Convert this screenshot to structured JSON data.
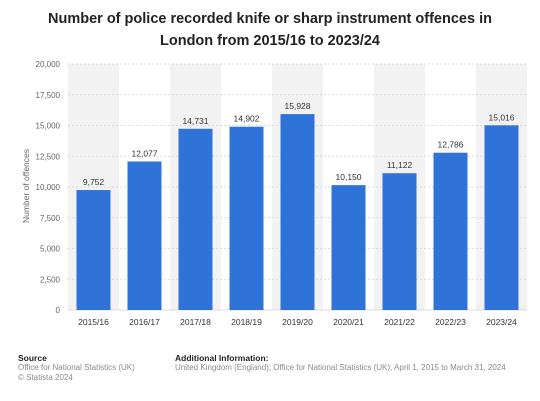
{
  "title": "Number of police recorded knife or sharp instrument offences in London from 2015/16 to 2023/24",
  "footer": {
    "source_heading": "Source",
    "source_line1": "Office for National Statistics (UK)",
    "source_line2": "© Statista 2024",
    "info_heading": "Additional Information:",
    "info_line1": "United Kingdom (England); Office for National Statistics (UK); April 1, 2015 to March 31, 2024"
  },
  "colors": {
    "bar": "#2f73d9",
    "grid": "#d2d2d2",
    "band": "#f2f2f2",
    "text": "#333333",
    "axis_text": "#666666"
  },
  "chart_data": {
    "type": "bar",
    "title": "Number of police recorded knife or sharp instrument offences in London from 2015/16 to 2023/24",
    "xlabel": "",
    "ylabel": "Number of offences",
    "categories": [
      "2015/16",
      "2016/17",
      "2017/18",
      "2018/19",
      "2019/20",
      "2020/21",
      "2021/22",
      "2022/23",
      "2023/24"
    ],
    "values": [
      9752,
      12077,
      14731,
      14902,
      15928,
      10150,
      11122,
      12786,
      15016
    ],
    "value_labels": [
      "9,752",
      "12,077",
      "14,731",
      "14,902",
      "15,928",
      "10,150",
      "11,122",
      "12,786",
      "15,016"
    ],
    "ylim": [
      0,
      20000
    ],
    "yticks": [
      0,
      2500,
      5000,
      7500,
      10000,
      12500,
      15000,
      17500,
      20000
    ],
    "ytick_labels": [
      "0",
      "2,500",
      "5,000",
      "7,500",
      "10,000",
      "12,500",
      "15,000",
      "17,500",
      "20,000"
    ],
    "grid": true,
    "legend": "none"
  }
}
